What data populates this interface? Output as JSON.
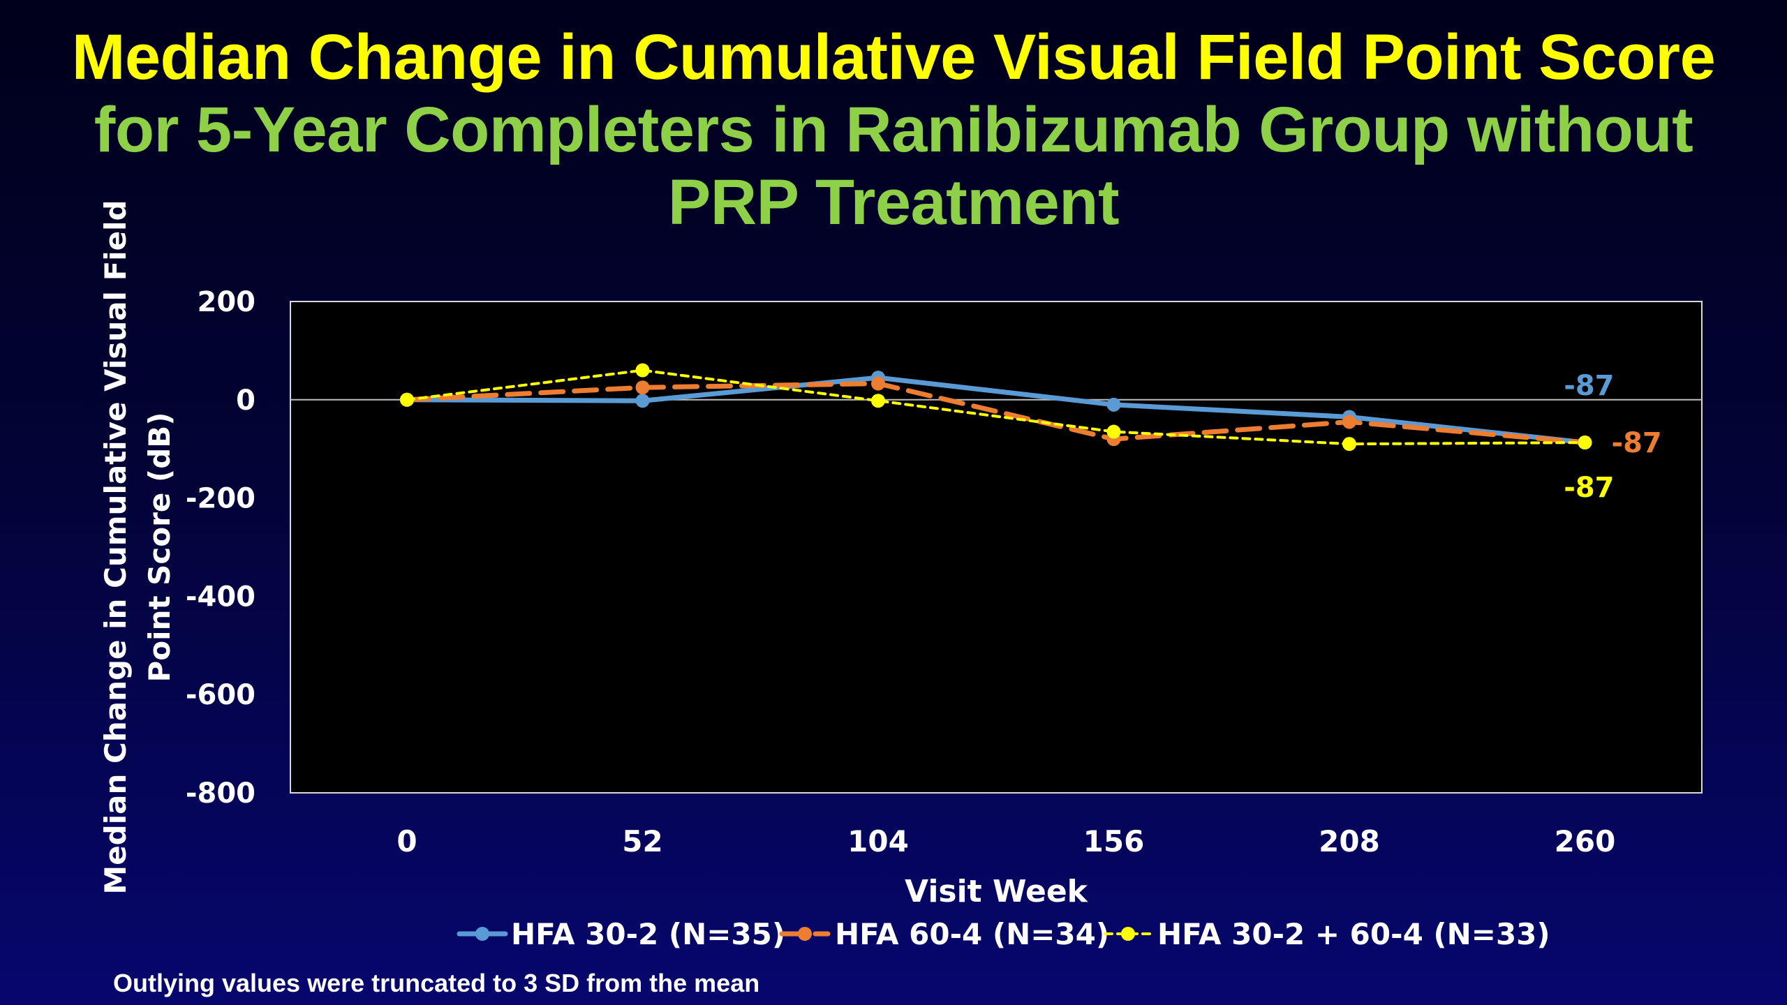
{
  "title": {
    "line1": "Median Change in Cumulative Visual Field Point Score",
    "line2": "for 5-Year Completers in Ranibizumab Group without",
    "line3": "PRP Treatment"
  },
  "footnote": "Outlying values were truncated to 3 SD from the mean",
  "colors": {
    "title_line1": "#ffff00",
    "title_line2": "#8ed048",
    "plot_bg": "#000000",
    "axis_text": "#ffffff",
    "series1": "#5b9bd5",
    "series2": "#ed7d31",
    "series3": "#ffff00"
  },
  "chart_data": {
    "type": "line",
    "title": "Median Change in Cumulative Visual Field Point Score for 5-Year Completers in Ranibizumab Group without PRP Treatment",
    "xlabel": "Visit Week",
    "ylabel": "Median Change in Cumulative Visual Field Point Score (dB)",
    "ylabel_lines": [
      "Median Change in Cumulative Visual Field",
      "Point Score (dB)"
    ],
    "x": [
      0,
      52,
      104,
      156,
      208,
      260
    ],
    "x_tick_labels": [
      "0",
      "52",
      "104",
      "156",
      "208",
      "260"
    ],
    "ylim": [
      -800,
      200
    ],
    "y_ticks": [
      200,
      0,
      -200,
      -400,
      -600,
      -800
    ],
    "y_tick_labels": [
      "200",
      "0",
      "-200",
      "-400",
      "-600",
      "-800"
    ],
    "grid": false,
    "zero_line": true,
    "legend_position": "bottom",
    "series": [
      {
        "name": "HFA 30-2 (N=35)",
        "values": [
          0,
          -2,
          45,
          -10,
          -35,
          -87
        ],
        "color": "#5b9bd5",
        "style": "solid",
        "end_label": "-87"
      },
      {
        "name": "HFA 60-4 (N=34)",
        "values": [
          0,
          25,
          33,
          -80,
          -45,
          -87
        ],
        "color": "#ed7d31",
        "style": "dashed",
        "end_label": "-87"
      },
      {
        "name": "HFA 30-2 + 60-4 (N=33)",
        "values": [
          0,
          60,
          -2,
          -65,
          -90,
          -87
        ],
        "color": "#ffff00",
        "style": "dotted",
        "end_label": "-87"
      }
    ]
  }
}
